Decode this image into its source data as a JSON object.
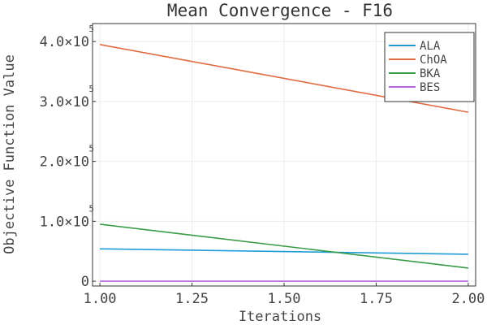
{
  "chart_data": {
    "type": "line",
    "title": "Mean Convergence - F16",
    "xlabel": "Iterations",
    "ylabel": "Objective Function Value",
    "x": [
      1.0,
      2.0
    ],
    "xlim": [
      0.98,
      2.02
    ],
    "ylim": [
      -8000,
      430000
    ],
    "x_ticks": [
      {
        "value": 1.0,
        "label": "1.00"
      },
      {
        "value": 1.25,
        "label": "1.25"
      },
      {
        "value": 1.5,
        "label": "1.50"
      },
      {
        "value": 1.75,
        "label": "1.75"
      },
      {
        "value": 2.0,
        "label": "2.00"
      }
    ],
    "y_ticks": [
      {
        "value": 0,
        "label": "0",
        "exp": ""
      },
      {
        "value": 100000,
        "label": "1.0×10",
        "exp": "5"
      },
      {
        "value": 200000,
        "label": "2.0×10",
        "exp": "5"
      },
      {
        "value": 300000,
        "label": "3.0×10",
        "exp": "5"
      },
      {
        "value": 400000,
        "label": "4.0×10",
        "exp": "5"
      }
    ],
    "series": [
      {
        "name": "ALA",
        "color": "#1f9bd7",
        "values": [
          54000,
          45000
        ]
      },
      {
        "name": "ChOA",
        "color": "#e06a3f",
        "values": [
          395000,
          282000
        ]
      },
      {
        "name": "BKA",
        "color": "#3a9b47",
        "values": [
          95000,
          22000
        ]
      },
      {
        "name": "BES",
        "color": "#b266d8",
        "values": [
          0,
          0
        ]
      }
    ],
    "grid": true,
    "legend_position": "top-right"
  }
}
